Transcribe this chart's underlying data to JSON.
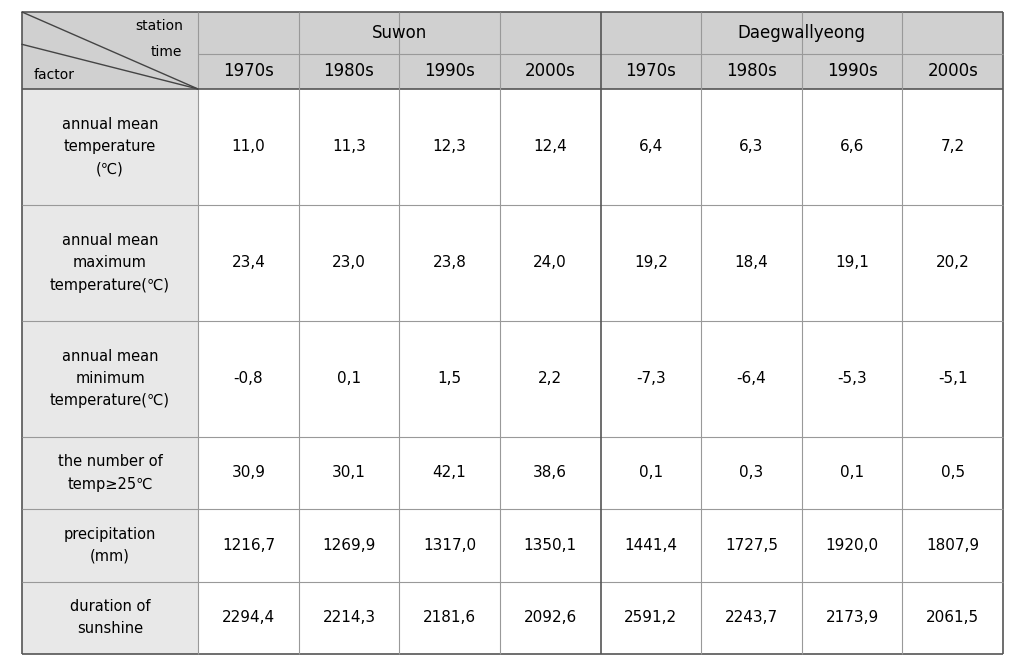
{
  "suwon_label": "Suwon",
  "daeg_label": "Daegwallyeong",
  "decades": [
    "1970s",
    "1980s",
    "1990s",
    "2000s",
    "1970s",
    "1980s",
    "1990s",
    "2000s"
  ],
  "diagonal_texts": [
    "station",
    "time",
    "factor"
  ],
  "rows": [
    {
      "label_lines": [
        "annual mean",
        "temperature",
        "(℃)"
      ],
      "values": [
        "11,0",
        "11,3",
        "12,3",
        "12,4",
        "6,4",
        "6,3",
        "6,6",
        "7,2"
      ]
    },
    {
      "label_lines": [
        "annual mean",
        "maximum",
        "temperature(℃)"
      ],
      "values": [
        "23,4",
        "23,0",
        "23,8",
        "24,0",
        "19,2",
        "18,4",
        "19,1",
        "20,2"
      ]
    },
    {
      "label_lines": [
        "annual mean",
        "minimum",
        "temperature(℃)"
      ],
      "values": [
        "-0,8",
        "0,1",
        "1,5",
        "2,2",
        "-7,3",
        "-6,4",
        "-5,3",
        "-5,1"
      ]
    },
    {
      "label_lines": [
        "the number of",
        "temp≥25℃"
      ],
      "values": [
        "30,9",
        "30,1",
        "42,1",
        "38,6",
        "0,1",
        "0,3",
        "0,1",
        "0,5"
      ]
    },
    {
      "label_lines": [
        "precipitation",
        "(mm)"
      ],
      "values": [
        "1216,7",
        "1269,9",
        "1317,0",
        "1350,1",
        "1441,4",
        "1727,5",
        "1920,0",
        "1807,9"
      ]
    },
    {
      "label_lines": [
        "duration of",
        "sunshine"
      ],
      "values": [
        "2294,4",
        "2214,3",
        "2181,6",
        "2092,6",
        "2591,2",
        "2243,7",
        "2173,9",
        "2061,5"
      ]
    }
  ],
  "header_bg": "#d0d0d0",
  "label_bg": "#e8e8e8",
  "data_bg": "#ffffff",
  "border_dark": "#555555",
  "border_light": "#999999",
  "text_color": "#000000",
  "font_size_data": 11,
  "font_size_header": 12,
  "font_size_label": 10.5,
  "font_size_diag": 10
}
